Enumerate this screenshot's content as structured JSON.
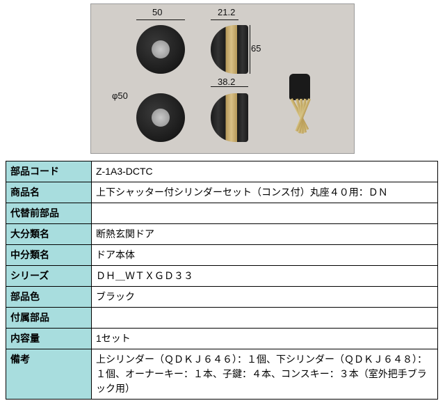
{
  "diagram": {
    "dim_top_width": "50",
    "dim_top2_width": "21.2",
    "dim_side_height": "65",
    "dim_side_depth": "38.2",
    "dim_diameter": "φ50",
    "background": "#d2cec9"
  },
  "table": {
    "rows": [
      {
        "label": "部品コード",
        "value": "Z-1A3-DCTC"
      },
      {
        "label": "商品名",
        "value": "上下シャッター付シリンダーセット（コンス付）丸座４０用：ＤＮ"
      },
      {
        "label": "代替前部品",
        "value": ""
      },
      {
        "label": "大分類名",
        "value": "断熱玄関ドア"
      },
      {
        "label": "中分類名",
        "value": "ドア本体"
      },
      {
        "label": "シリーズ",
        "value": "ＤＨ＿ＷＴＸＧＤ３３"
      },
      {
        "label": "部品色",
        "value": "ブラック"
      },
      {
        "label": "付属部品",
        "value": ""
      },
      {
        "label": "内容量",
        "value": "1セット"
      },
      {
        "label": "備考",
        "value": "上シリンダー（ＱＤＫＪ６４６）：１個、下シリンダー（ＱＤＫＪ６４８）：１個、オーナーキー：１本、子鍵：４本、コンスキー：３本（室外把手ブラック用）"
      }
    ],
    "header_bg": "#a8ddde"
  }
}
